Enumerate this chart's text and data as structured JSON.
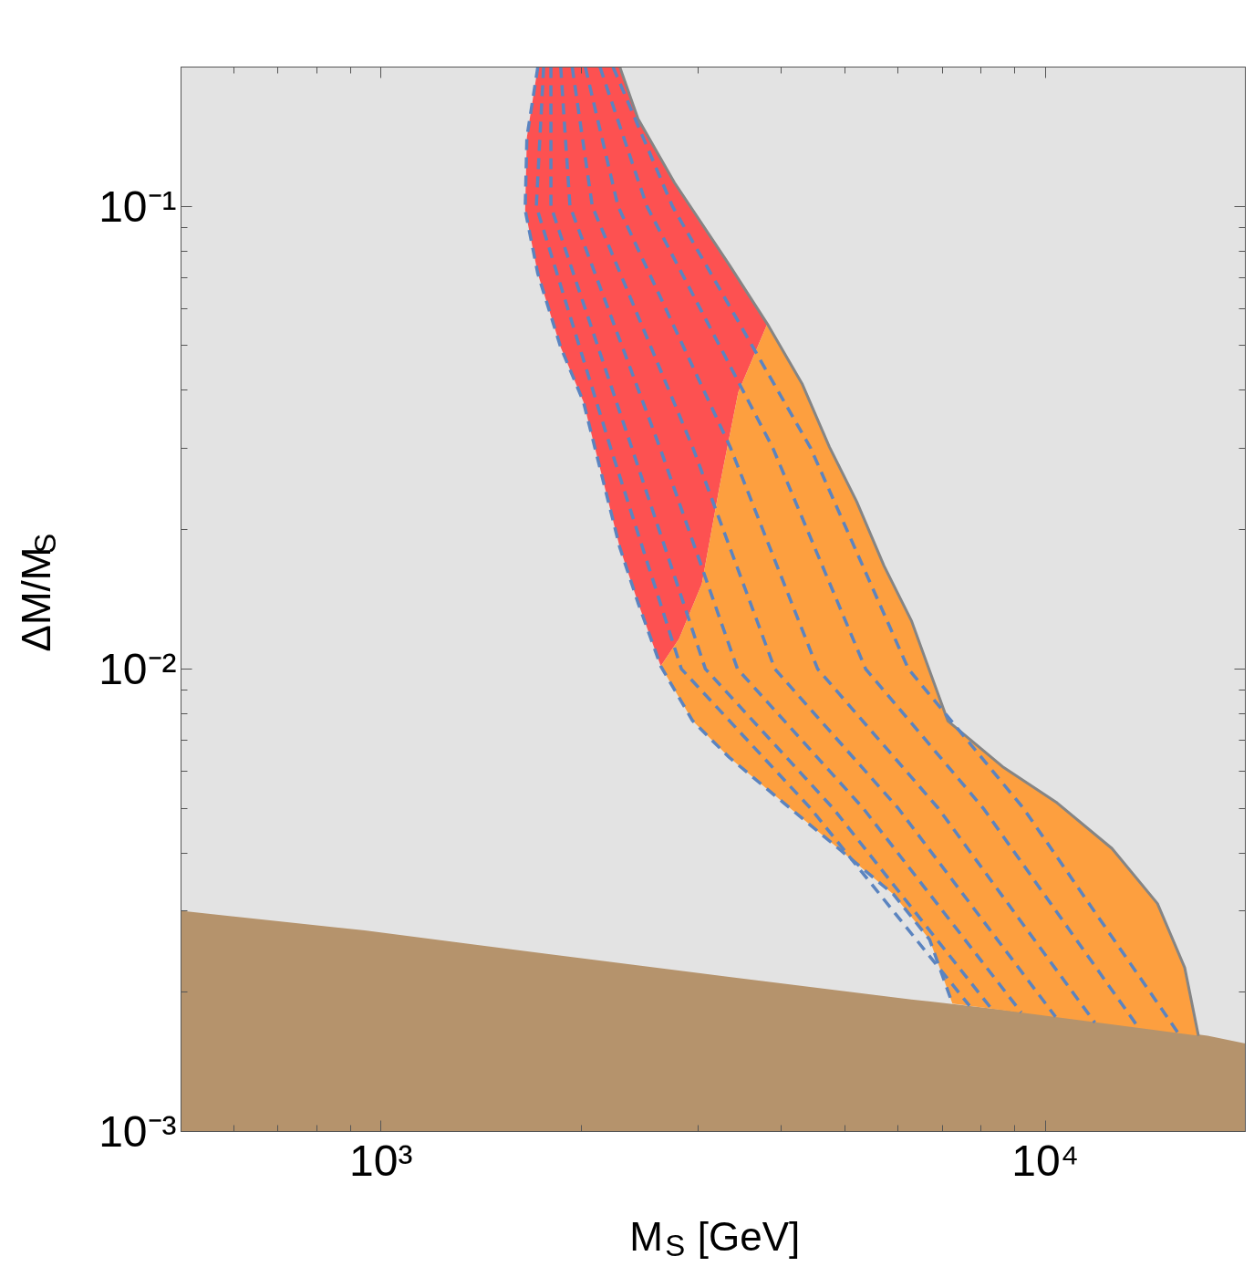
{
  "chart_data": {
    "type": "area",
    "xlabel": "M$_{S}$ [GeV]",
    "ylabel": "ΔM/M$_{S}$",
    "log": "xy",
    "grid": false,
    "xlim": [
      500,
      20000
    ],
    "ylim": [
      0.001,
      0.2
    ],
    "xticks": [
      {
        "value": 600,
        "label": null
      },
      {
        "value": 700,
        "label": null
      },
      {
        "value": 800,
        "label": null
      },
      {
        "value": 900,
        "label": null
      },
      {
        "value": 1000,
        "label": "10³"
      },
      {
        "value": 2000,
        "label": null
      },
      {
        "value": 3000,
        "label": null
      },
      {
        "value": 4000,
        "label": null
      },
      {
        "value": 5000,
        "label": null
      },
      {
        "value": 6000,
        "label": null
      },
      {
        "value": 7000,
        "label": null
      },
      {
        "value": 8000,
        "label": null
      },
      {
        "value": 9000,
        "label": null
      },
      {
        "value": 10000,
        "label": "10⁴"
      },
      {
        "value": 20000,
        "label": null
      }
    ],
    "yticks": [
      {
        "value": 0.001,
        "label": "10⁻³"
      },
      {
        "value": 0.002,
        "label": null
      },
      {
        "value": 0.003,
        "label": null
      },
      {
        "value": 0.004,
        "label": null
      },
      {
        "value": 0.005,
        "label": null
      },
      {
        "value": 0.006,
        "label": null
      },
      {
        "value": 0.007,
        "label": null
      },
      {
        "value": 0.008,
        "label": null
      },
      {
        "value": 0.009,
        "label": null
      },
      {
        "value": 0.01,
        "label": "10⁻²"
      },
      {
        "value": 0.02,
        "label": null
      },
      {
        "value": 0.03,
        "label": null
      },
      {
        "value": 0.04,
        "label": null
      },
      {
        "value": 0.05,
        "label": null
      },
      {
        "value": 0.06,
        "label": null
      },
      {
        "value": 0.07,
        "label": null
      },
      {
        "value": 0.08,
        "label": null
      },
      {
        "value": 0.09,
        "label": null
      },
      {
        "value": 0.1,
        "label": "10⁻¹"
      },
      {
        "value": 0.2,
        "label": null
      }
    ],
    "bands": [
      {
        "axis": "y",
        "from": 0.001,
        "to": 0.2,
        "color": "#e3e3e3"
      }
    ],
    "series": [
      {
        "color": "#b5936c",
        "x": [
          500,
          945,
          1777,
          3342,
          6281,
          11820,
          17550,
          20000
        ],
        "values": [
          0.003,
          0.00272,
          0.00242,
          0.00216,
          0.00193,
          0.00174,
          0.00161,
          0.00155
        ]
      },
      {
        "color": "#fd5151",
        "x": [
          1722,
          1658,
          1648,
          1722,
          1863,
          2017,
          2148,
          2288,
          2437,
          2637,
          2809,
          3040,
          3238,
          3449,
          3815,
          3342,
          2765,
          2437,
          2288
        ],
        "values": [
          0.2,
          0.141,
          0.0982,
          0.0715,
          0.0497,
          0.0378,
          0.0263,
          0.0183,
          0.0139,
          0.01014,
          0.01161,
          0.01526,
          0.0251,
          0.0396,
          0.0557,
          0.0748,
          0.1125,
          0.1546,
          0.2
        ]
      },
      {
        "color": "#fd9f3f",
        "x": [
          3815,
          4302,
          4730,
          5200,
          5717,
          6285,
          7132,
          8619,
          10420,
          12600,
          14750,
          16210,
          17000,
          7246,
          6695,
          5902,
          4883,
          4040,
          3342,
          2945,
          2637,
          2809,
          3040,
          3238,
          3449
        ],
        "values": [
          0.0557,
          0.0414,
          0.0302,
          0.023,
          0.0167,
          0.01272,
          0.00772,
          0.00615,
          0.00513,
          0.00409,
          0.00311,
          0.00226,
          0.00161,
          0.00189,
          0.0026,
          0.00326,
          0.00409,
          0.00513,
          0.00644,
          0.00772,
          0.01014,
          0.01161,
          0.01526,
          0.0251,
          0.0396
        ]
      },
      {
        "type": "line",
        "line_style": "solid",
        "color": "#858585",
        "x": [
          2288,
          2437,
          2765,
          3342,
          3815,
          4302,
          4730,
          5200,
          5717,
          6285,
          7132,
          8619,
          10420,
          12600,
          14750,
          16210,
          17000
        ],
        "values": [
          0.2,
          0.1546,
          0.1125,
          0.0748,
          0.0557,
          0.0414,
          0.0302,
          0.023,
          0.0167,
          0.01272,
          0.00772,
          0.00615,
          0.00513,
          0.00409,
          0.00311,
          0.00226,
          0.00161
        ]
      },
      {
        "type": "line",
        "line_style": "dashed",
        "color": "#5b84c0",
        "x": [
          1722,
          1658,
          1648,
          1722,
          1863,
          2017,
          2148,
          2288,
          2437,
          2637,
          2945,
          3342,
          4040,
          4883,
          5902,
          6695,
          7246
        ],
        "values": [
          0.2,
          0.141,
          0.0982,
          0.0715,
          0.0497,
          0.0378,
          0.0263,
          0.0183,
          0.0139,
          0.01014,
          0.00772,
          0.00644,
          0.00513,
          0.00409,
          0.00326,
          0.0026,
          0.00189
        ]
      },
      {
        "type": "line",
        "line_style": "dashed",
        "color": "#5b84c0",
        "x": [
          1757,
          1713,
          2217,
          2832,
          4430,
          7688
        ],
        "values": [
          0.2,
          0.1,
          0.03,
          0.01,
          0.005,
          0.00187
        ]
      },
      {
        "type": "line",
        "line_style": "dashed",
        "color": "#5b84c0",
        "x": [
          1802,
          1802,
          2386,
          3078,
          4790,
          8302
        ],
        "values": [
          0.2,
          0.1,
          0.03,
          0.01,
          0.005,
          0.00184
        ]
      },
      {
        "type": "line",
        "line_style": "dashed",
        "color": "#5b84c0",
        "x": [
          1864,
          1925,
          2631,
          3440,
          5317,
          9197
        ],
        "values": [
          0.2,
          0.1,
          0.03,
          0.01,
          0.005,
          0.00181
        ]
      },
      {
        "type": "line",
        "line_style": "dashed",
        "color": "#5b84c0",
        "x": [
          1940,
          2080,
          2949,
          3915,
          6003,
          10360
        ],
        "values": [
          0.2,
          0.1,
          0.03,
          0.01,
          0.005,
          0.00177
        ]
      },
      {
        "type": "line",
        "line_style": "dashed",
        "color": "#5b84c0",
        "x": [
          2030,
          2274,
          3360,
          4542,
          6898,
          11870
        ],
        "values": [
          0.2,
          0.1,
          0.03,
          0.01,
          0.005,
          0.00172
        ]
      },
      {
        "type": "line",
        "line_style": "dashed",
        "color": "#5b84c0",
        "x": [
          2136,
          2513,
          3890,
          5364,
          8063,
          13840
        ],
        "values": [
          0.2,
          0.1,
          0.03,
          0.01,
          0.005,
          0.00167
        ]
      },
      {
        "type": "line",
        "line_style": "dashed",
        "color": "#5b84c0",
        "x": [
          2235,
          2746,
          4434,
          6220,
          9265,
          15860
        ],
        "values": [
          0.2,
          0.1,
          0.03,
          0.01,
          0.005,
          0.00163
        ]
      }
    ]
  }
}
